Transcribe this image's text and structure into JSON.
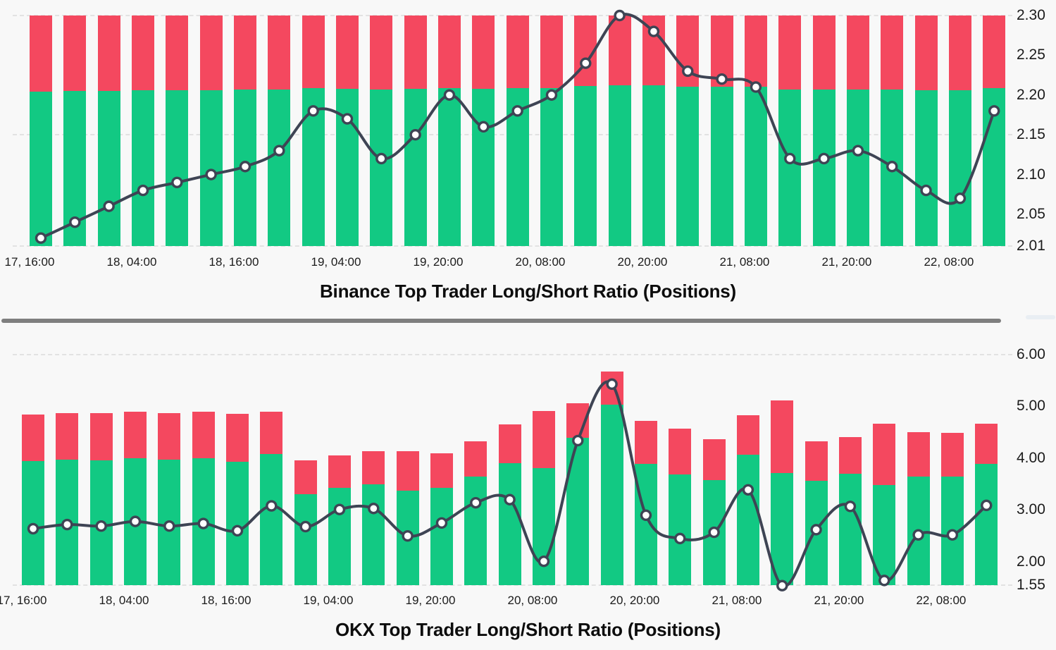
{
  "colors": {
    "long_green": "#12c983",
    "short_red": "#f4485f",
    "line": "#3e4454",
    "marker_fill": "#ffffff",
    "grid": "#e2e2e2",
    "tick_text": "#1b1b1b",
    "title_text": "#0d0d0d",
    "background": "#f8f8f8",
    "divider": "#7f7f7f",
    "divider_fragment": "#e9eef3"
  },
  "divider": {
    "style": "horizontal-scrollbar-thumb"
  },
  "x_tick_bar_indices": [
    0,
    3,
    6,
    9,
    12,
    15,
    18,
    21,
    24,
    27
  ],
  "chart_data": [
    {
      "type": "bar",
      "subtype": "stacked-bars-with-line-overlay",
      "title": "Binance Top Trader Long/Short Ratio (Positions)",
      "exchange": "Binance",
      "legend": [
        "long-share-icon",
        "short-share-icon",
        "ratio-line"
      ],
      "y_axis_side": "right",
      "ylim": [
        2.01,
        2.3
      ],
      "y_ticks": [
        "2.30",
        "2.25",
        "2.20",
        "2.15",
        "2.10",
        "2.05",
        "2.01"
      ],
      "grid_values": [
        2.3,
        2.15,
        2.01
      ],
      "categories": [
        "17, 16:00",
        "18, 04:00",
        "18, 16:00",
        "19, 04:00",
        "19, 20:00",
        "20, 08:00",
        "20, 20:00",
        "21, 08:00",
        "21, 20:00",
        "22, 08:00"
      ],
      "bar_base": 2.01,
      "bar_top": 2.3,
      "bar_green_top": [
        2.204,
        2.205,
        2.205,
        2.206,
        2.206,
        2.206,
        2.207,
        2.207,
        2.209,
        2.208,
        2.207,
        2.208,
        2.209,
        2.208,
        2.209,
        2.209,
        2.211,
        2.212,
        2.212,
        2.21,
        2.21,
        2.21,
        2.207,
        2.207,
        2.207,
        2.207,
        2.206,
        2.206,
        2.209
      ],
      "line": [
        2.02,
        2.04,
        2.06,
        2.08,
        2.09,
        2.1,
        2.11,
        2.13,
        2.18,
        2.17,
        2.12,
        2.15,
        2.2,
        2.16,
        2.18,
        2.2,
        2.24,
        2.3,
        2.28,
        2.23,
        2.22,
        2.21,
        2.12,
        2.12,
        2.13,
        2.11,
        2.08,
        2.07,
        2.18
      ]
    },
    {
      "type": "bar",
      "subtype": "stacked-bars-with-line-overlay",
      "title": "OKX Top Trader Long/Short Ratio (Positions)",
      "exchange": "OKX",
      "legend": [
        "long-share-icon",
        "short-share-icon",
        "ratio-line"
      ],
      "y_axis_side": "right",
      "ylim": [
        1.55,
        6.0
      ],
      "y_ticks": [
        "6.00",
        "5.00",
        "4.00",
        "3.00",
        "2.00",
        "1.55"
      ],
      "grid_values": [
        6.0,
        1.55
      ],
      "categories": [
        "17, 16:00",
        "18, 04:00",
        "18, 16:00",
        "19, 04:00",
        "19, 20:00",
        "20, 08:00",
        "20, 20:00",
        "21, 08:00",
        "21, 20:00",
        "22, 08:00"
      ],
      "bar_base": 1.55,
      "bar_top": [
        4.84,
        4.87,
        4.87,
        4.9,
        4.87,
        4.9,
        4.86,
        4.9,
        3.96,
        4.06,
        4.14,
        4.14,
        4.1,
        4.33,
        4.65,
        4.91,
        5.06,
        5.67,
        4.72,
        4.57,
        4.37,
        4.83,
        5.12,
        4.32,
        4.41,
        4.66,
        4.5,
        4.49,
        4.66
      ],
      "bar_green_top": [
        3.95,
        3.97,
        3.96,
        4.0,
        3.97,
        4.0,
        3.93,
        4.08,
        3.31,
        3.43,
        3.5,
        3.37,
        3.43,
        3.65,
        3.9,
        3.81,
        4.39,
        5.03,
        3.89,
        3.68,
        3.58,
        4.07,
        3.71,
        3.56,
        3.7,
        3.48,
        3.64,
        3.65,
        3.89
      ],
      "line": [
        2.64,
        2.72,
        2.69,
        2.78,
        2.69,
        2.74,
        2.6,
        3.08,
        2.68,
        3.01,
        3.03,
        2.5,
        2.75,
        3.14,
        3.2,
        2.01,
        4.34,
        5.43,
        2.9,
        2.45,
        2.57,
        3.39,
        1.54,
        2.62,
        3.07,
        1.64,
        2.52,
        2.52,
        3.09
      ]
    }
  ]
}
